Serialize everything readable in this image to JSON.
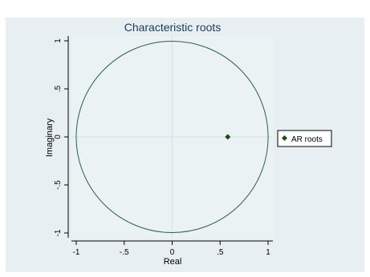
{
  "chart_data": {
    "type": "scatter",
    "title": "Characteristic roots",
    "xlabel": "Real",
    "ylabel": "Imaginary",
    "xlim": [
      -1.05,
      1.05
    ],
    "ylim": [
      -1.05,
      1.05
    ],
    "x_ticks": [
      {
        "value": -1,
        "label": "-1"
      },
      {
        "value": -0.5,
        "label": "-.5"
      },
      {
        "value": 0,
        "label": "0"
      },
      {
        "value": 0.5,
        "label": ".5"
      },
      {
        "value": 1,
        "label": "1"
      }
    ],
    "y_ticks": [
      {
        "value": -1,
        "label": "-1"
      },
      {
        "value": -0.5,
        "label": "-.5"
      },
      {
        "value": 0,
        "label": "0"
      },
      {
        "value": 0.5,
        "label": ".5"
      },
      {
        "value": 1,
        "label": "1"
      }
    ],
    "reference_lines": {
      "x": 0,
      "y": 0
    },
    "unit_circle": {
      "center": [
        0,
        0
      ],
      "radius": 1
    },
    "series": [
      {
        "name": "AR roots",
        "points": [
          {
            "x": 0.58,
            "y": 0
          }
        ]
      }
    ],
    "legend": {
      "position": "right",
      "entries": [
        "AR roots"
      ]
    },
    "grid": false
  },
  "colors": {
    "outer_background": "#ffffff",
    "graph_background": "#e7eff2",
    "plot_background": "#eaf2f3",
    "circle": "#2f5f4d",
    "marker": "#1f4a1f",
    "reference_line": "#d4e0e6",
    "axis": "#000000",
    "text": "#000000",
    "title": "#1d3a5a"
  }
}
